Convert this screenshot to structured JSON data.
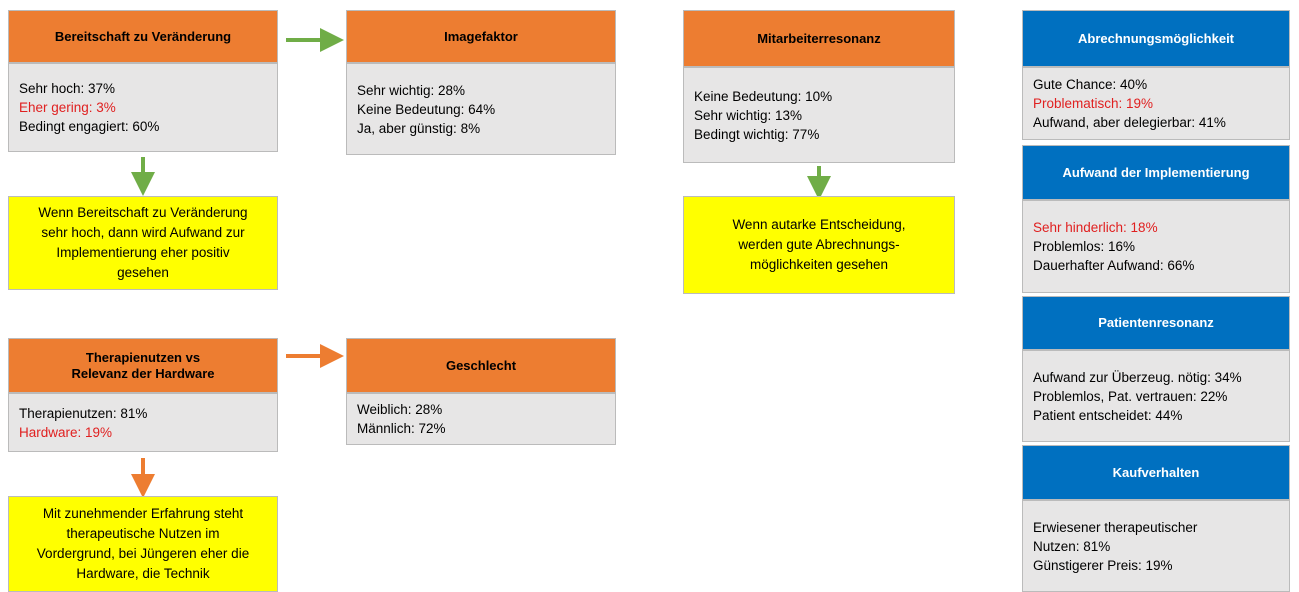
{
  "boxes": [
    {
      "title": [
        "Bereitschaft zu Veränderung"
      ],
      "items": [
        {
          "text": "Sehr hoch: 37%"
        },
        {
          "text": "Eher gering: 3%",
          "emphasis": true
        },
        {
          "text": "Bedingt engagiert: 60%"
        }
      ]
    },
    {
      "title": [
        "Imagefaktor"
      ],
      "items": [
        {
          "text": "Sehr wichtig: 28%"
        },
        {
          "text": "Keine Bedeutung: 64%"
        },
        {
          "text": "Ja, aber günstig: 8%"
        }
      ]
    },
    {
      "title": [
        "Mitarbeiterresonanz"
      ],
      "items": [
        {
          "text": "Keine Bedeutung: 10%"
        },
        {
          "text": "Sehr wichtig: 13%"
        },
        {
          "text": "Bedingt wichtig: 77%"
        }
      ]
    },
    {
      "title": [
        "Therapienutzen vs",
        "Relevanz der Hardware"
      ],
      "items": [
        {
          "text": "Therapienutzen: 81%"
        },
        {
          "text": "Hardware: 19%",
          "emphasis": true
        }
      ]
    },
    {
      "title": [
        "Geschlecht"
      ],
      "items": [
        {
          "text": "Weiblich:  28%"
        },
        {
          "text": "Männlich: 72%"
        }
      ]
    },
    {
      "title": [
        "Abrechnungsmöglichkeit"
      ],
      "items": [
        {
          "text": "Gute Chance: 40%"
        },
        {
          "text": "Problematisch: 19%",
          "emphasis": true
        },
        {
          "text": "Aufwand, aber delegierbar: 41%"
        }
      ]
    },
    {
      "title": [
        "Aufwand der Implementierung"
      ],
      "items": [
        {
          "text": "Sehr hinderlich: 18%",
          "emphasis": true
        },
        {
          "text": "Problemlos: 16%"
        },
        {
          "text": "Dauerhafter Aufwand: 66%"
        }
      ]
    },
    {
      "title": [
        "Patientenresonanz"
      ],
      "items": [
        {
          "text": "Aufwand zur Überzeug. nötig: 34%"
        },
        {
          "text": "Problemlos, Pat. vertrauen: 22%"
        },
        {
          "text": "Patient entscheidet: 44%"
        }
      ]
    },
    {
      "title": [
        "Kaufverhalten"
      ],
      "items": [
        {
          "text": "Erwiesener therapeutischer"
        },
        {
          "text": "Nutzen: 81%"
        },
        {
          "text": "Günstigerer Preis: 19%"
        }
      ]
    }
  ],
  "notes": [
    {
      "lines": [
        "Wenn Bereitschaft zu Veränderung",
        "sehr hoch, dann wird Aufwand zur",
        "Implementierung eher positiv",
        "gesehen"
      ]
    },
    {
      "lines": [
        "Wenn autarke Entscheidung,",
        "werden gute Abrechnungs-",
        "möglichkeiten gesehen"
      ]
    },
    {
      "lines": [
        "Mit zunehmender Erfahrung steht",
        "therapeutische Nutzen im",
        "Vordergrund, bei Jüngeren eher die",
        "Hardware, die Technik"
      ]
    }
  ]
}
